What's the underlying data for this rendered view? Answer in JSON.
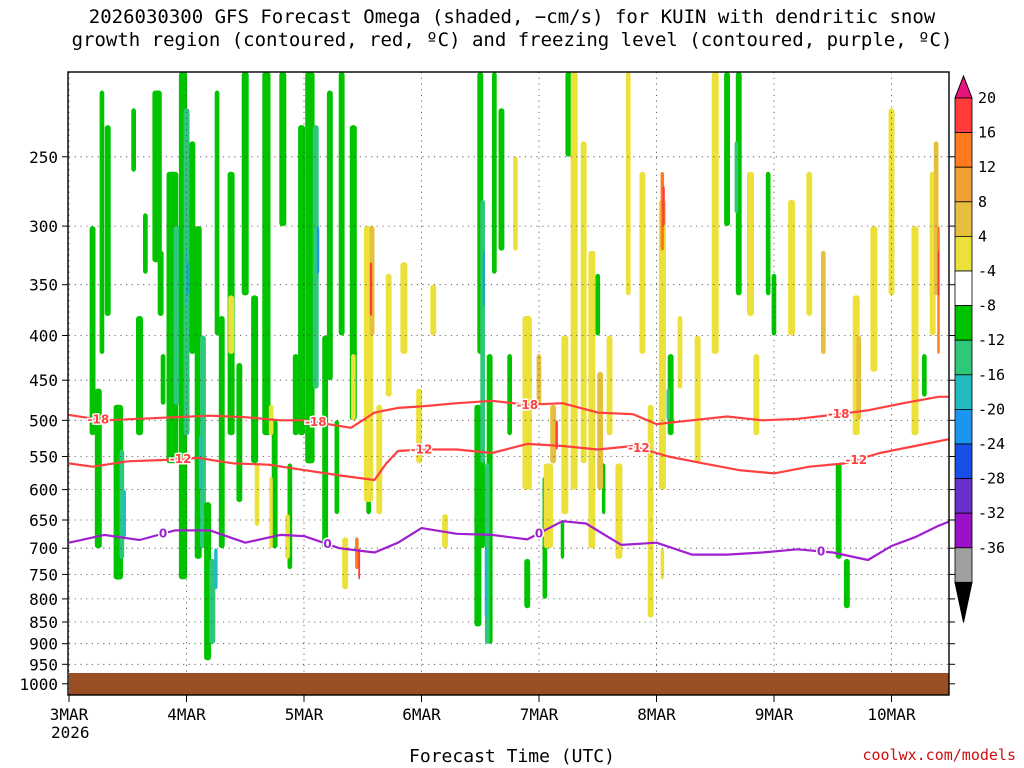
{
  "title_line1": "2026030300 GFS Forecast Omega (shaded, −cm/s) for KUIN with dendritic snow",
  "title_line2": "growth region (contoured, red, ºC) and freezing level (contoured, purple, ºC)",
  "xlabel": "Forecast Time (UTC)",
  "credit": "coolwx.com/models",
  "chart_data": {
    "type": "heatmap",
    "x_axis": {
      "ticks": [
        {
          "label": "3MAR",
          "sub": "2026",
          "day": 0
        },
        {
          "label": "4MAR",
          "sub": "",
          "day": 1
        },
        {
          "label": "5MAR",
          "sub": "",
          "day": 2
        },
        {
          "label": "6MAR",
          "sub": "",
          "day": 3
        },
        {
          "label": "7MAR",
          "sub": "",
          "day": 4
        },
        {
          "label": "8MAR",
          "sub": "",
          "day": 5
        },
        {
          "label": "9MAR",
          "sub": "",
          "day": 6
        },
        {
          "label": "10MAR",
          "sub": "",
          "day": 7
        }
      ],
      "range_days": [
        0,
        7.65
      ]
    },
    "y_axis": {
      "ticks": [
        250,
        300,
        350,
        400,
        450,
        500,
        550,
        600,
        650,
        700,
        750,
        800,
        850,
        900,
        950,
        1000
      ],
      "range_hpa": [
        200,
        1030
      ],
      "log_scale": true,
      "reversed": true,
      "grid": true
    },
    "colorbar": {
      "labels": [
        "20",
        "16",
        "12",
        "8",
        "4",
        "-4",
        "-8",
        "-12",
        "-16",
        "-20",
        "-24",
        "-28",
        "-32",
        "-36"
      ],
      "colors": [
        "#e8147c",
        "#ff3b3b",
        "#ff7a1e",
        "#f0a030",
        "#e6c03c",
        "#ece03a",
        "#ffffff",
        "#00c400",
        "#2ec87a",
        "#22bcc0",
        "#1a96ee",
        "#1a4ee8",
        "#6a2ecc",
        "#9a12c8",
        "#a0a0a0",
        "#000000"
      ]
    },
    "contours": [
      {
        "name": "-18",
        "color": "#ff4040",
        "day": [
          0,
          0.3,
          0.6,
          0.9,
          1.2,
          1.5,
          1.8,
          2.0,
          2.2,
          2.4,
          2.6,
          2.8,
          3.0,
          3.3,
          3.6,
          3.9,
          4.2,
          4.5,
          4.8,
          5.0,
          5.3,
          5.6,
          5.9,
          6.2,
          6.5,
          6.8,
          7.1,
          7.4,
          7.65
        ],
        "hpa": [
          493,
          500,
          498,
          496,
          494,
          496,
          500,
          500,
          505,
          510,
          490,
          484,
          482,
          478,
          475,
          480,
          478,
          490,
          492,
          505,
          500,
          495,
          500,
          498,
          493,
          487,
          478,
          470,
          470
        ]
      },
      {
        "name": "-12",
        "color": "#ff4040",
        "day": [
          0,
          0.2,
          0.5,
          0.8,
          1.1,
          1.4,
          1.7,
          2.0,
          2.3,
          2.6,
          2.7,
          2.8,
          3.0,
          3.3,
          3.6,
          3.9,
          4.2,
          4.5,
          4.8,
          5.1,
          5.4,
          5.7,
          6.0,
          6.3,
          6.6,
          6.9,
          7.2,
          7.5,
          7.65
        ],
        "hpa": [
          560,
          565,
          557,
          555,
          552,
          560,
          562,
          570,
          578,
          585,
          560,
          542,
          540,
          540,
          545,
          532,
          535,
          540,
          535,
          550,
          560,
          570,
          575,
          565,
          560,
          545,
          535,
          525,
          525
        ]
      },
      {
        "name": "0",
        "color": "#a020d0",
        "day": [
          0,
          0.3,
          0.6,
          0.9,
          1.2,
          1.5,
          1.8,
          2.0,
          2.3,
          2.6,
          2.8,
          3.0,
          3.3,
          3.6,
          3.9,
          4.2,
          4.4,
          4.7,
          5.0,
          5.3,
          5.6,
          5.9,
          6.2,
          6.5,
          6.8,
          7.0,
          7.2,
          7.4,
          7.65
        ],
        "hpa": [
          690,
          676,
          685,
          668,
          668,
          690,
          676,
          678,
          700,
          708,
          690,
          664,
          674,
          676,
          684,
          652,
          656,
          694,
          690,
          712,
          712,
          708,
          702,
          708,
          722,
          696,
          680,
          660,
          640
        ]
      }
    ],
    "series": [
      {
        "name": "-18",
        "label_days": [
          0.25,
          2.1,
          3.9,
          6.55
        ]
      },
      {
        "name": "-12",
        "label_days": [
          0.95,
          3.0,
          4.85,
          6.7
        ]
      },
      {
        "name": "0",
        "label_days": [
          0.8,
          2.2,
          4.0,
          6.4
        ]
      }
    ]
  }
}
